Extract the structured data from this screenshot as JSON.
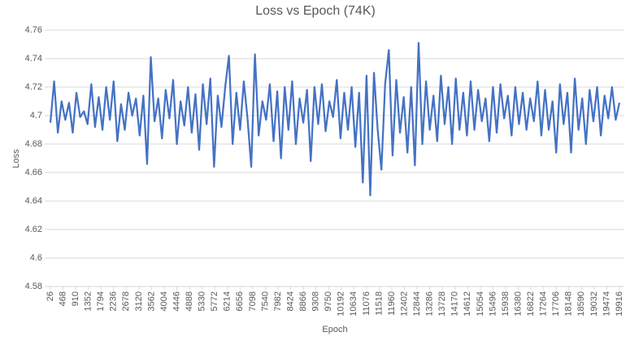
{
  "chart_data": {
    "type": "line",
    "title": "Loss vs Epoch (74K)",
    "x_label": "Epoch",
    "y_label": "Loss",
    "x": [
      26,
      156,
      286,
      416,
      546,
      676,
      806,
      936,
      1066,
      1196,
      1326,
      1456,
      1586,
      1716,
      1846,
      1976,
      2106,
      2236,
      2366,
      2496,
      2626,
      2756,
      2886,
      3016,
      3146,
      3276,
      3406,
      3536,
      3666,
      3796,
      3926,
      4056,
      4186,
      4316,
      4446,
      4576,
      4706,
      4836,
      4966,
      5096,
      5226,
      5356,
      5486,
      5616,
      5746,
      5876,
      6006,
      6136,
      6266,
      6396,
      6526,
      6656,
      6786,
      6916,
      7046,
      7176,
      7306,
      7436,
      7566,
      7696,
      7826,
      7956,
      8086,
      8216,
      8346,
      8476,
      8606,
      8736,
      8866,
      8996,
      9126,
      9256,
      9386,
      9516,
      9646,
      9776,
      9906,
      10036,
      10166,
      10296,
      10426,
      10556,
      10686,
      10816,
      10946,
      11076,
      11206,
      11336,
      11466,
      11596,
      11726,
      11856,
      11986,
      12116,
      12246,
      12376,
      12506,
      12636,
      12766,
      12896,
      13026,
      13156,
      13286,
      13416,
      13546,
      13676,
      13806,
      13936,
      14066,
      14196,
      14326,
      14456,
      14586,
      14716,
      14846,
      14976,
      15106,
      15236,
      15366,
      15496,
      15626,
      15756,
      15886,
      16016,
      16146,
      16276,
      16406,
      16536,
      16666,
      16796,
      16926,
      17056,
      17186,
      17316,
      17446,
      17576,
      17706,
      17836,
      17966,
      18096,
      18226,
      18356,
      18486,
      18616,
      18746,
      18876,
      19006,
      19136,
      19266,
      19396,
      19526,
      19656,
      19786,
      19916
    ],
    "series": [
      {
        "name": "Loss",
        "color": "#4472c4",
        "values": [
          4.695,
          4.724,
          4.688,
          4.71,
          4.697,
          4.709,
          4.688,
          4.716,
          4.699,
          4.703,
          4.694,
          4.722,
          4.692,
          4.713,
          4.69,
          4.72,
          4.697,
          4.724,
          4.682,
          4.708,
          4.69,
          4.716,
          4.7,
          4.712,
          4.686,
          4.714,
          4.666,
          4.741,
          4.696,
          4.712,
          4.684,
          4.718,
          4.698,
          4.725,
          4.68,
          4.71,
          4.693,
          4.72,
          4.688,
          4.715,
          4.676,
          4.722,
          4.694,
          4.726,
          4.664,
          4.714,
          4.692,
          4.72,
          4.742,
          4.68,
          4.716,
          4.69,
          4.724,
          4.698,
          4.664,
          4.743,
          4.686,
          4.71,
          4.697,
          4.722,
          4.682,
          4.717,
          4.67,
          4.72,
          4.69,
          4.724,
          4.68,
          4.712,
          4.695,
          4.718,
          4.668,
          4.72,
          4.694,
          4.722,
          4.689,
          4.71,
          4.699,
          4.725,
          4.684,
          4.716,
          4.69,
          4.72,
          4.678,
          4.716,
          4.653,
          4.728,
          4.644,
          4.73,
          4.69,
          4.662,
          4.722,
          4.746,
          4.672,
          4.725,
          4.688,
          4.713,
          4.674,
          4.72,
          4.665,
          4.751,
          4.68,
          4.724,
          4.69,
          4.714,
          4.682,
          4.728,
          4.694,
          4.72,
          4.68,
          4.726,
          4.69,
          4.716,
          4.686,
          4.724,
          4.69,
          4.718,
          4.696,
          4.712,
          4.682,
          4.72,
          4.688,
          4.722,
          4.698,
          4.714,
          4.686,
          4.72,
          4.694,
          4.716,
          4.69,
          4.712,
          4.696,
          4.724,
          4.686,
          4.718,
          4.69,
          4.71,
          4.674,
          4.722,
          4.694,
          4.716,
          4.674,
          4.726,
          4.69,
          4.712,
          4.68,
          4.718,
          4.696,
          4.72,
          4.686,
          4.714,
          4.698,
          4.72,
          4.697,
          4.709
        ]
      }
    ],
    "xlim": [
      26,
      19916
    ],
    "xticks": [
      26,
      468,
      910,
      1352,
      1794,
      2236,
      2678,
      3120,
      3562,
      4004,
      4446,
      4888,
      5330,
      5772,
      6214,
      6656,
      7098,
      7540,
      7982,
      8424,
      8866,
      9308,
      9750,
      10192,
      10634,
      11076,
      11518,
      11960,
      12402,
      12844,
      13286,
      13728,
      14170,
      14612,
      15054,
      15496,
      15938,
      16380,
      16822,
      17264,
      17706,
      18148,
      18590,
      19032,
      19474,
      19916
    ],
    "ylim": [
      4.58,
      4.76
    ],
    "yticks": [
      4.58,
      4.6,
      4.62,
      4.64,
      4.66,
      4.68,
      4.7,
      4.72,
      4.74,
      4.76
    ],
    "grid": true
  }
}
